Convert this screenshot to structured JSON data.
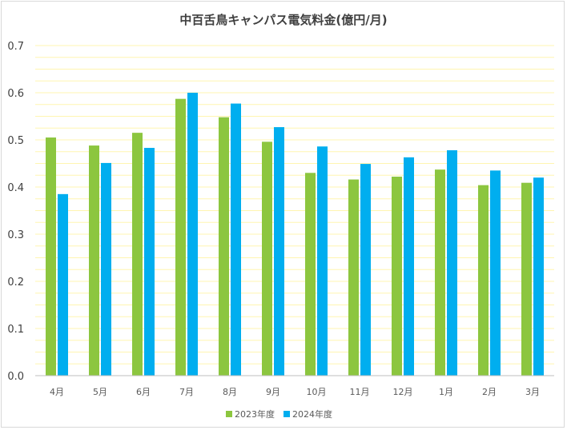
{
  "chart_data": {
    "type": "bar",
    "title": "中百舌鳥キャンパス電気料金(億円/月)",
    "xlabel": "",
    "ylabel": "",
    "categories": [
      "4月",
      "5月",
      "6月",
      "7月",
      "8月",
      "9月",
      "10月",
      "11月",
      "12月",
      "1月",
      "2月",
      "3月"
    ],
    "series": [
      {
        "name": "2023年度",
        "color": "#8cc63f",
        "values": [
          0.505,
          0.488,
          0.515,
          0.587,
          0.548,
          0.496,
          0.43,
          0.416,
          0.422,
          0.437,
          0.404,
          0.409
        ]
      },
      {
        "name": "2024年度",
        "color": "#00aeef",
        "values": [
          0.385,
          0.451,
          0.483,
          0.6,
          0.577,
          0.527,
          0.486,
          0.449,
          0.463,
          0.478,
          0.435,
          0.42
        ]
      }
    ],
    "ylim": [
      0,
      0.7
    ],
    "yticks": [
      "0.0",
      "0.1",
      "0.2",
      "0.3",
      "0.4",
      "0.5",
      "0.6",
      "0.7"
    ],
    "minor_gridlines": true,
    "gridline_color": "#fff5b0",
    "axis_color": "#bfbfbf",
    "legend_position": "bottom"
  }
}
